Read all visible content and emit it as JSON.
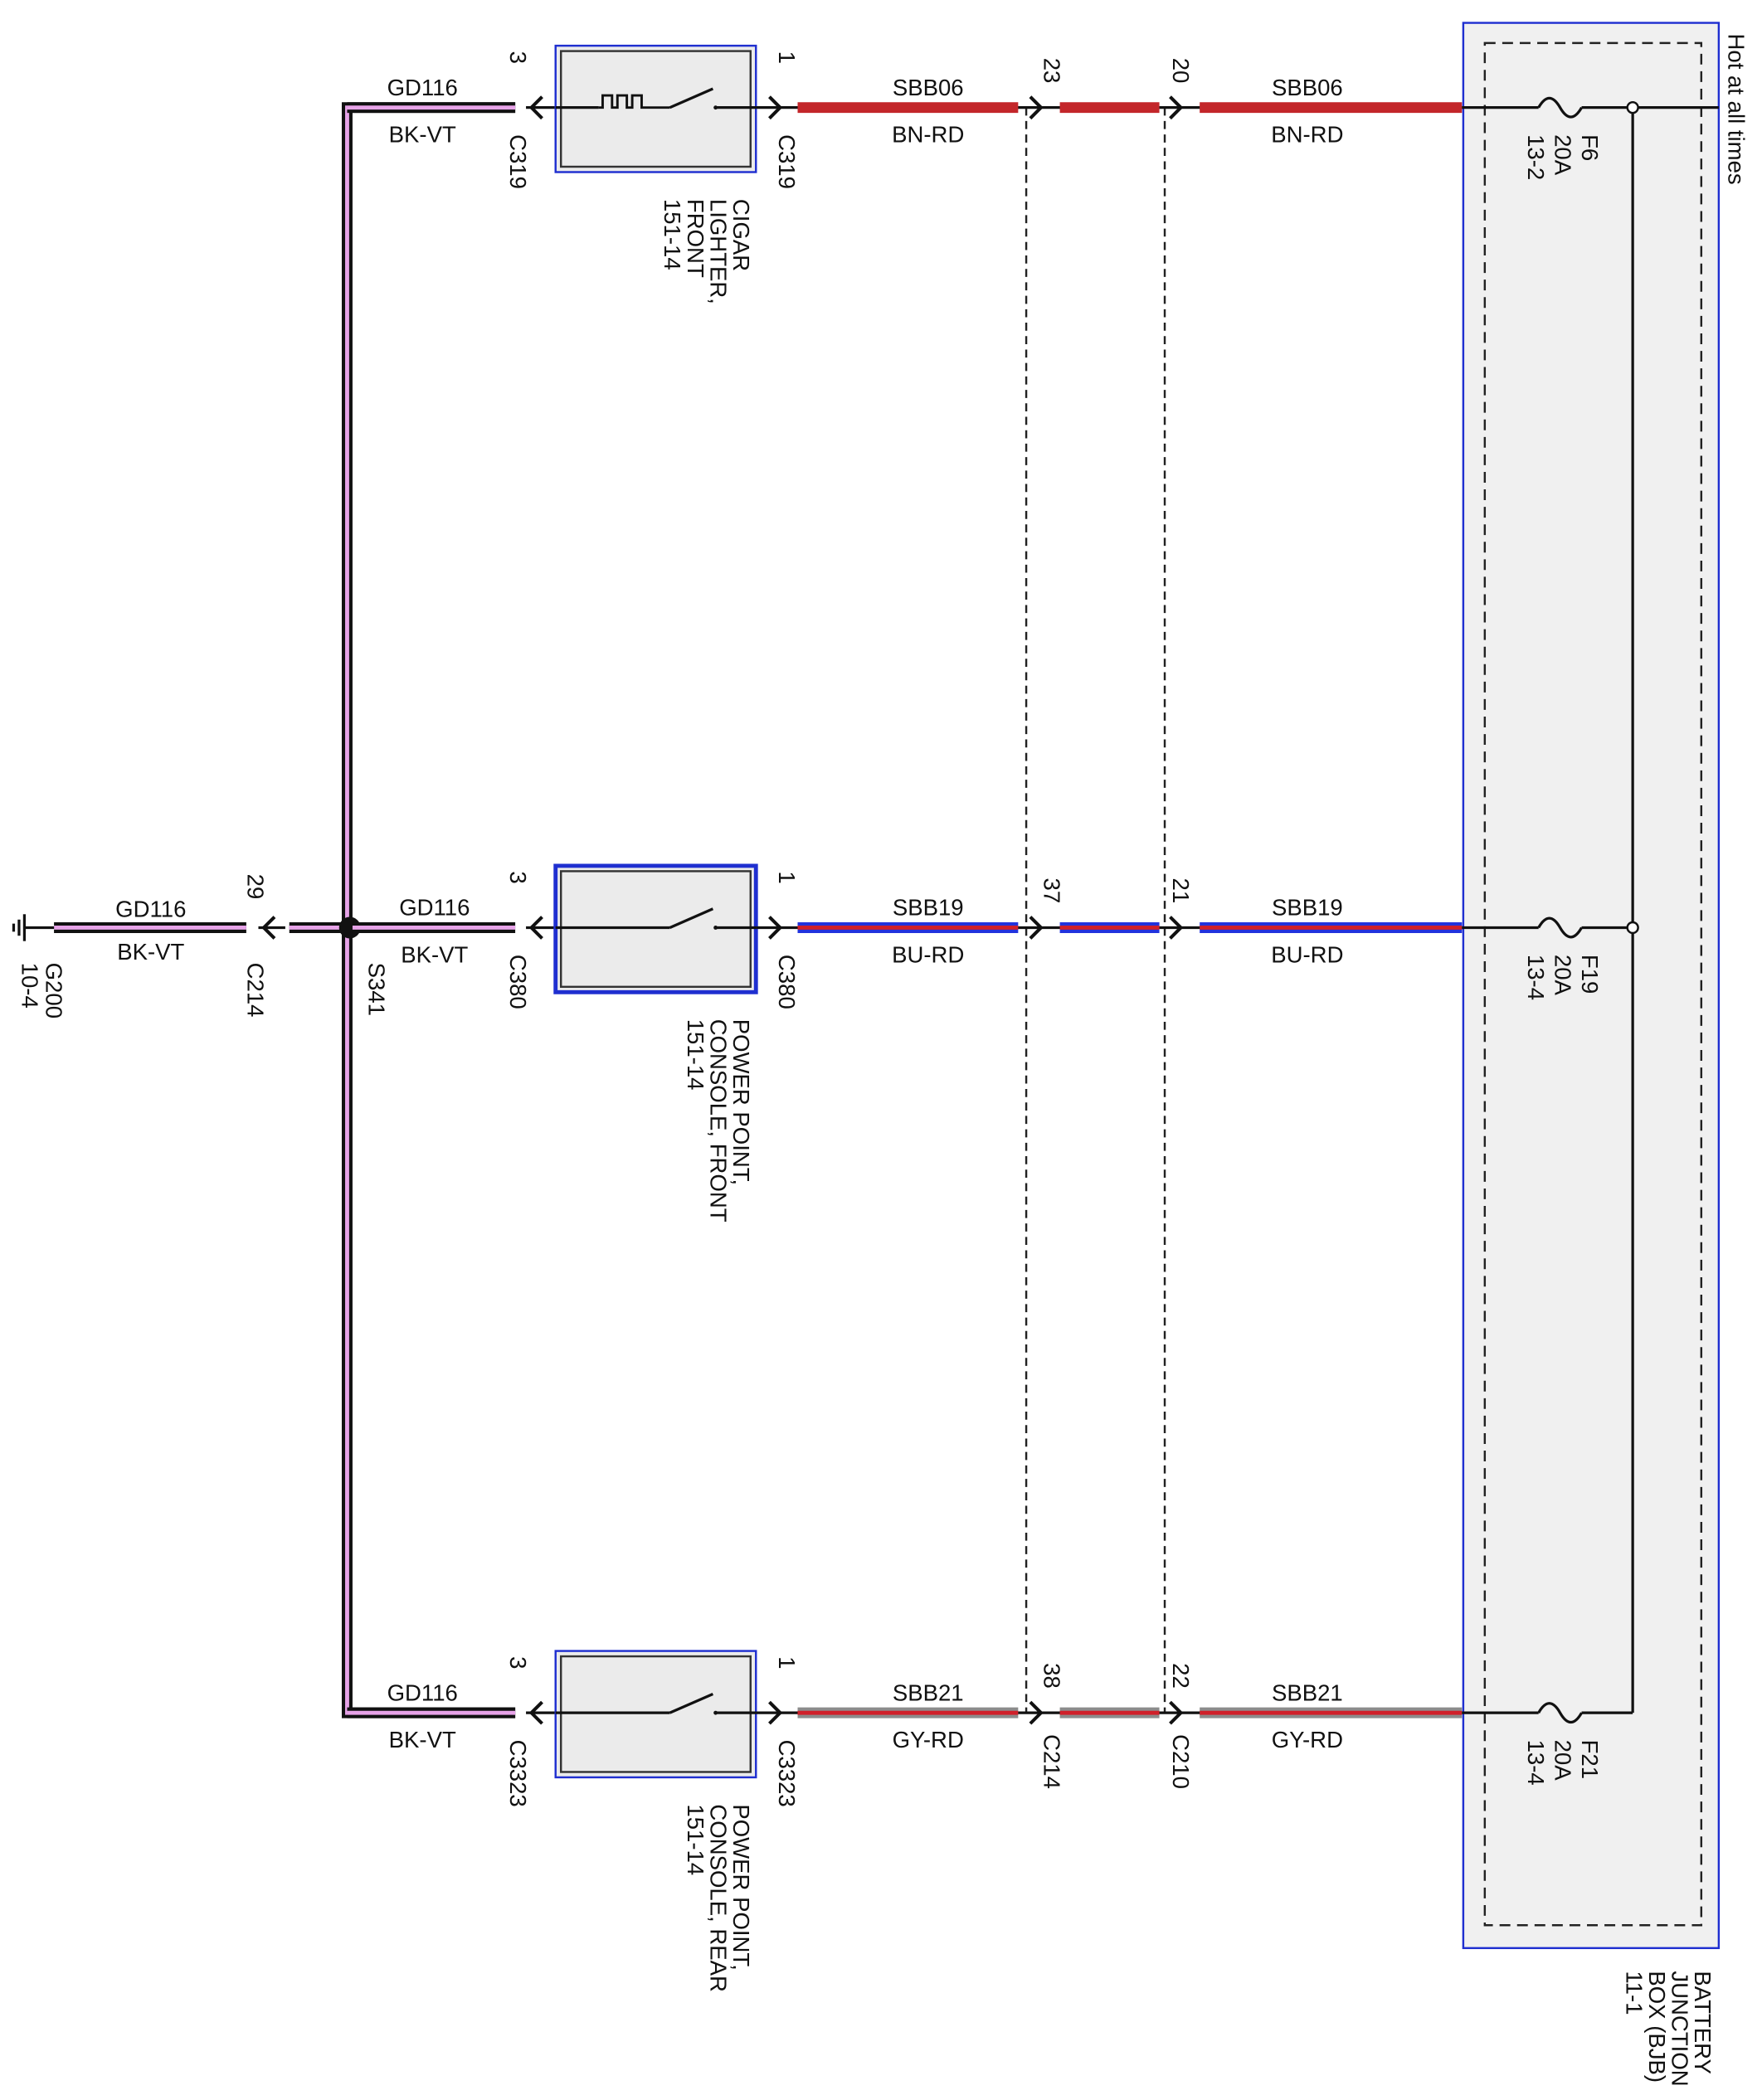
{
  "hot_label": "Hot at all times",
  "ground": {
    "name": "G200",
    "ref": "10-4",
    "circuit": "GD116",
    "color": "BK-VT",
    "pin": "29",
    "connector": "C214"
  },
  "splice": "S341",
  "bjb": {
    "lines": [
      "BATTERY",
      "JUNCTION",
      "BOX (BJB)",
      "11-1"
    ]
  },
  "circuits": [
    {
      "ground_wire": {
        "circuit": "GD116",
        "color": "BK-VT"
      },
      "left_pin": "3",
      "left_connector": "C319",
      "right_pin": "1",
      "right_connector": "C319",
      "component": [
        "CIGAR",
        "LIGHTER,",
        "FRONT",
        "151-14"
      ],
      "feed_wire": {
        "circuit": "SBB06",
        "color": "BN-RD"
      },
      "inline_pins": [
        {
          "pin": "23"
        },
        {
          "pin": "20"
        }
      ],
      "fuse_wire": {
        "circuit": "SBB06",
        "color": "BN-RD"
      },
      "fuse": {
        "name": "F6",
        "rating": "20A",
        "ref": "13-2"
      }
    },
    {
      "ground_wire": {
        "circuit": "GD116",
        "color": "BK-VT"
      },
      "left_pin": "3",
      "left_connector": "C380",
      "right_pin": "1",
      "right_connector": "C380",
      "component": [
        "POWER POINT,",
        "CONSOLE, FRONT",
        "151-14"
      ],
      "feed_wire": {
        "circuit": "SBB19",
        "color": "BU-RD"
      },
      "inline_pins": [
        {
          "pin": "37"
        },
        {
          "pin": "21"
        }
      ],
      "fuse_wire": {
        "circuit": "SBB19",
        "color": "BU-RD"
      },
      "fuse": {
        "name": "F19",
        "rating": "20A",
        "ref": "13-4"
      }
    },
    {
      "ground_wire": {
        "circuit": "GD116",
        "color": "BK-VT"
      },
      "left_pin": "3",
      "left_connector": "C3323",
      "right_pin": "1",
      "right_connector": "C3323",
      "component": [
        "POWER POINT,",
        "CONSOLE, REAR",
        "151-14"
      ],
      "feed_wire": {
        "circuit": "SBB21",
        "color": "GY-RD"
      },
      "inline_pins": [
        {
          "pin": "38",
          "connector": "C214"
        },
        {
          "pin": "22",
          "connector": "C210"
        }
      ],
      "fuse_wire": {
        "circuit": "SBB21",
        "color": "GY-RD"
      },
      "fuse": {
        "name": "F21",
        "rating": "20A",
        "ref": "13-4"
      }
    }
  ]
}
